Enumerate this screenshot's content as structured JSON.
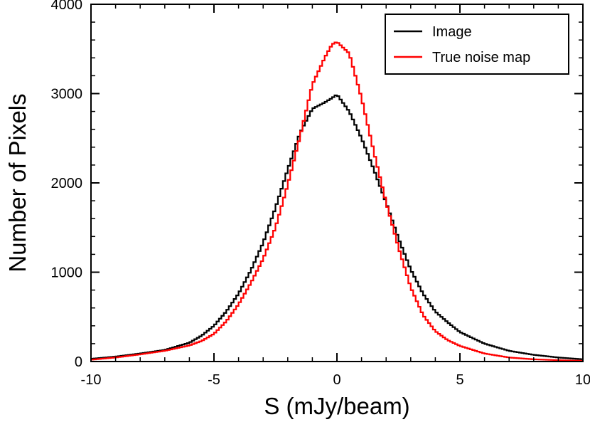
{
  "chart_data": {
    "type": "line",
    "title": "",
    "xlabel": "S (mJy/beam)",
    "ylabel": "Number of Pixels",
    "xlim": [
      -10,
      10
    ],
    "ylim": [
      0,
      4000
    ],
    "x_ticks": [
      -10,
      -5,
      0,
      5,
      10
    ],
    "x_tick_labels": [
      "-10",
      "-5",
      "0",
      "5",
      "10"
    ],
    "y_ticks": [
      0,
      1000,
      2000,
      3000,
      4000
    ],
    "y_tick_labels": [
      "0",
      "1000",
      "2000",
      "3000",
      "4000"
    ],
    "legend_position": "top-right",
    "x": [
      -10,
      -9,
      -8,
      -7,
      -6,
      -5.5,
      -5,
      -4.5,
      -4,
      -3.5,
      -3,
      -2.5,
      -2,
      -1.5,
      -1,
      -0.5,
      -0.2,
      0,
      0.5,
      1,
      1.5,
      2,
      2.5,
      3,
      3.5,
      4,
      4.5,
      5,
      6,
      7,
      8,
      9,
      10
    ],
    "series": [
      {
        "name": "Image",
        "color": "#000000",
        "values": [
          30,
          55,
          90,
          130,
          210,
          290,
          400,
          560,
          760,
          1020,
          1330,
          1720,
          2150,
          2560,
          2830,
          2900,
          2950,
          2990,
          2800,
          2500,
          2150,
          1780,
          1380,
          1030,
          760,
          560,
          440,
          330,
          200,
          120,
          75,
          45,
          25
        ]
      },
      {
        "name": "True noise map",
        "color": "#ff0000",
        "values": [
          20,
          45,
          80,
          120,
          180,
          230,
          310,
          450,
          640,
          880,
          1150,
          1500,
          1980,
          2520,
          3100,
          3400,
          3550,
          3580,
          3450,
          2950,
          2350,
          1780,
          1280,
          830,
          520,
          340,
          240,
          175,
          90,
          45,
          25,
          15,
          8
        ]
      }
    ]
  }
}
